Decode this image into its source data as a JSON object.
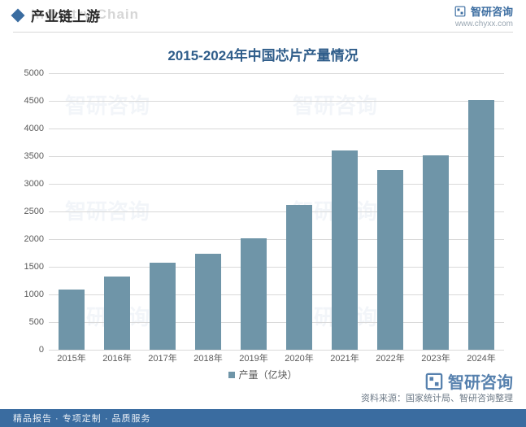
{
  "header": {
    "title_cn": "产业链上游",
    "title_ghost": "Industry Chain",
    "brand_name": "智研咨询",
    "brand_url": "www.chyxx.com",
    "brand_color": "#3a6ca0"
  },
  "chart": {
    "type": "bar",
    "title": "2015-2024年中国芯片产量情况",
    "title_color": "#2f5d8a",
    "title_fontsize": 17,
    "categories": [
      "2015年",
      "2016年",
      "2017年",
      "2018年",
      "2019年",
      "2020年",
      "2021年",
      "2022年",
      "2023年",
      "2024年"
    ],
    "values": [
      1090,
      1320,
      1570,
      1740,
      2020,
      2620,
      3600,
      3250,
      3510,
      4510
    ],
    "bar_color": "#6f95a8",
    "ylim": [
      0,
      5000
    ],
    "ytick_step": 500,
    "yticks": [
      0,
      500,
      1000,
      1500,
      2000,
      2500,
      3000,
      3500,
      4000,
      4500,
      5000
    ],
    "grid_color": "#d9d9d9",
    "background_color": "#ffffff",
    "label_fontsize": 11,
    "bar_width": 0.58,
    "legend_label": "产量（亿块）"
  },
  "source": "资料来源：国家统计局、智研咨询整理",
  "footer": "精品报告 · 专项定制 · 品质服务",
  "watermark_text": "智研咨询"
}
